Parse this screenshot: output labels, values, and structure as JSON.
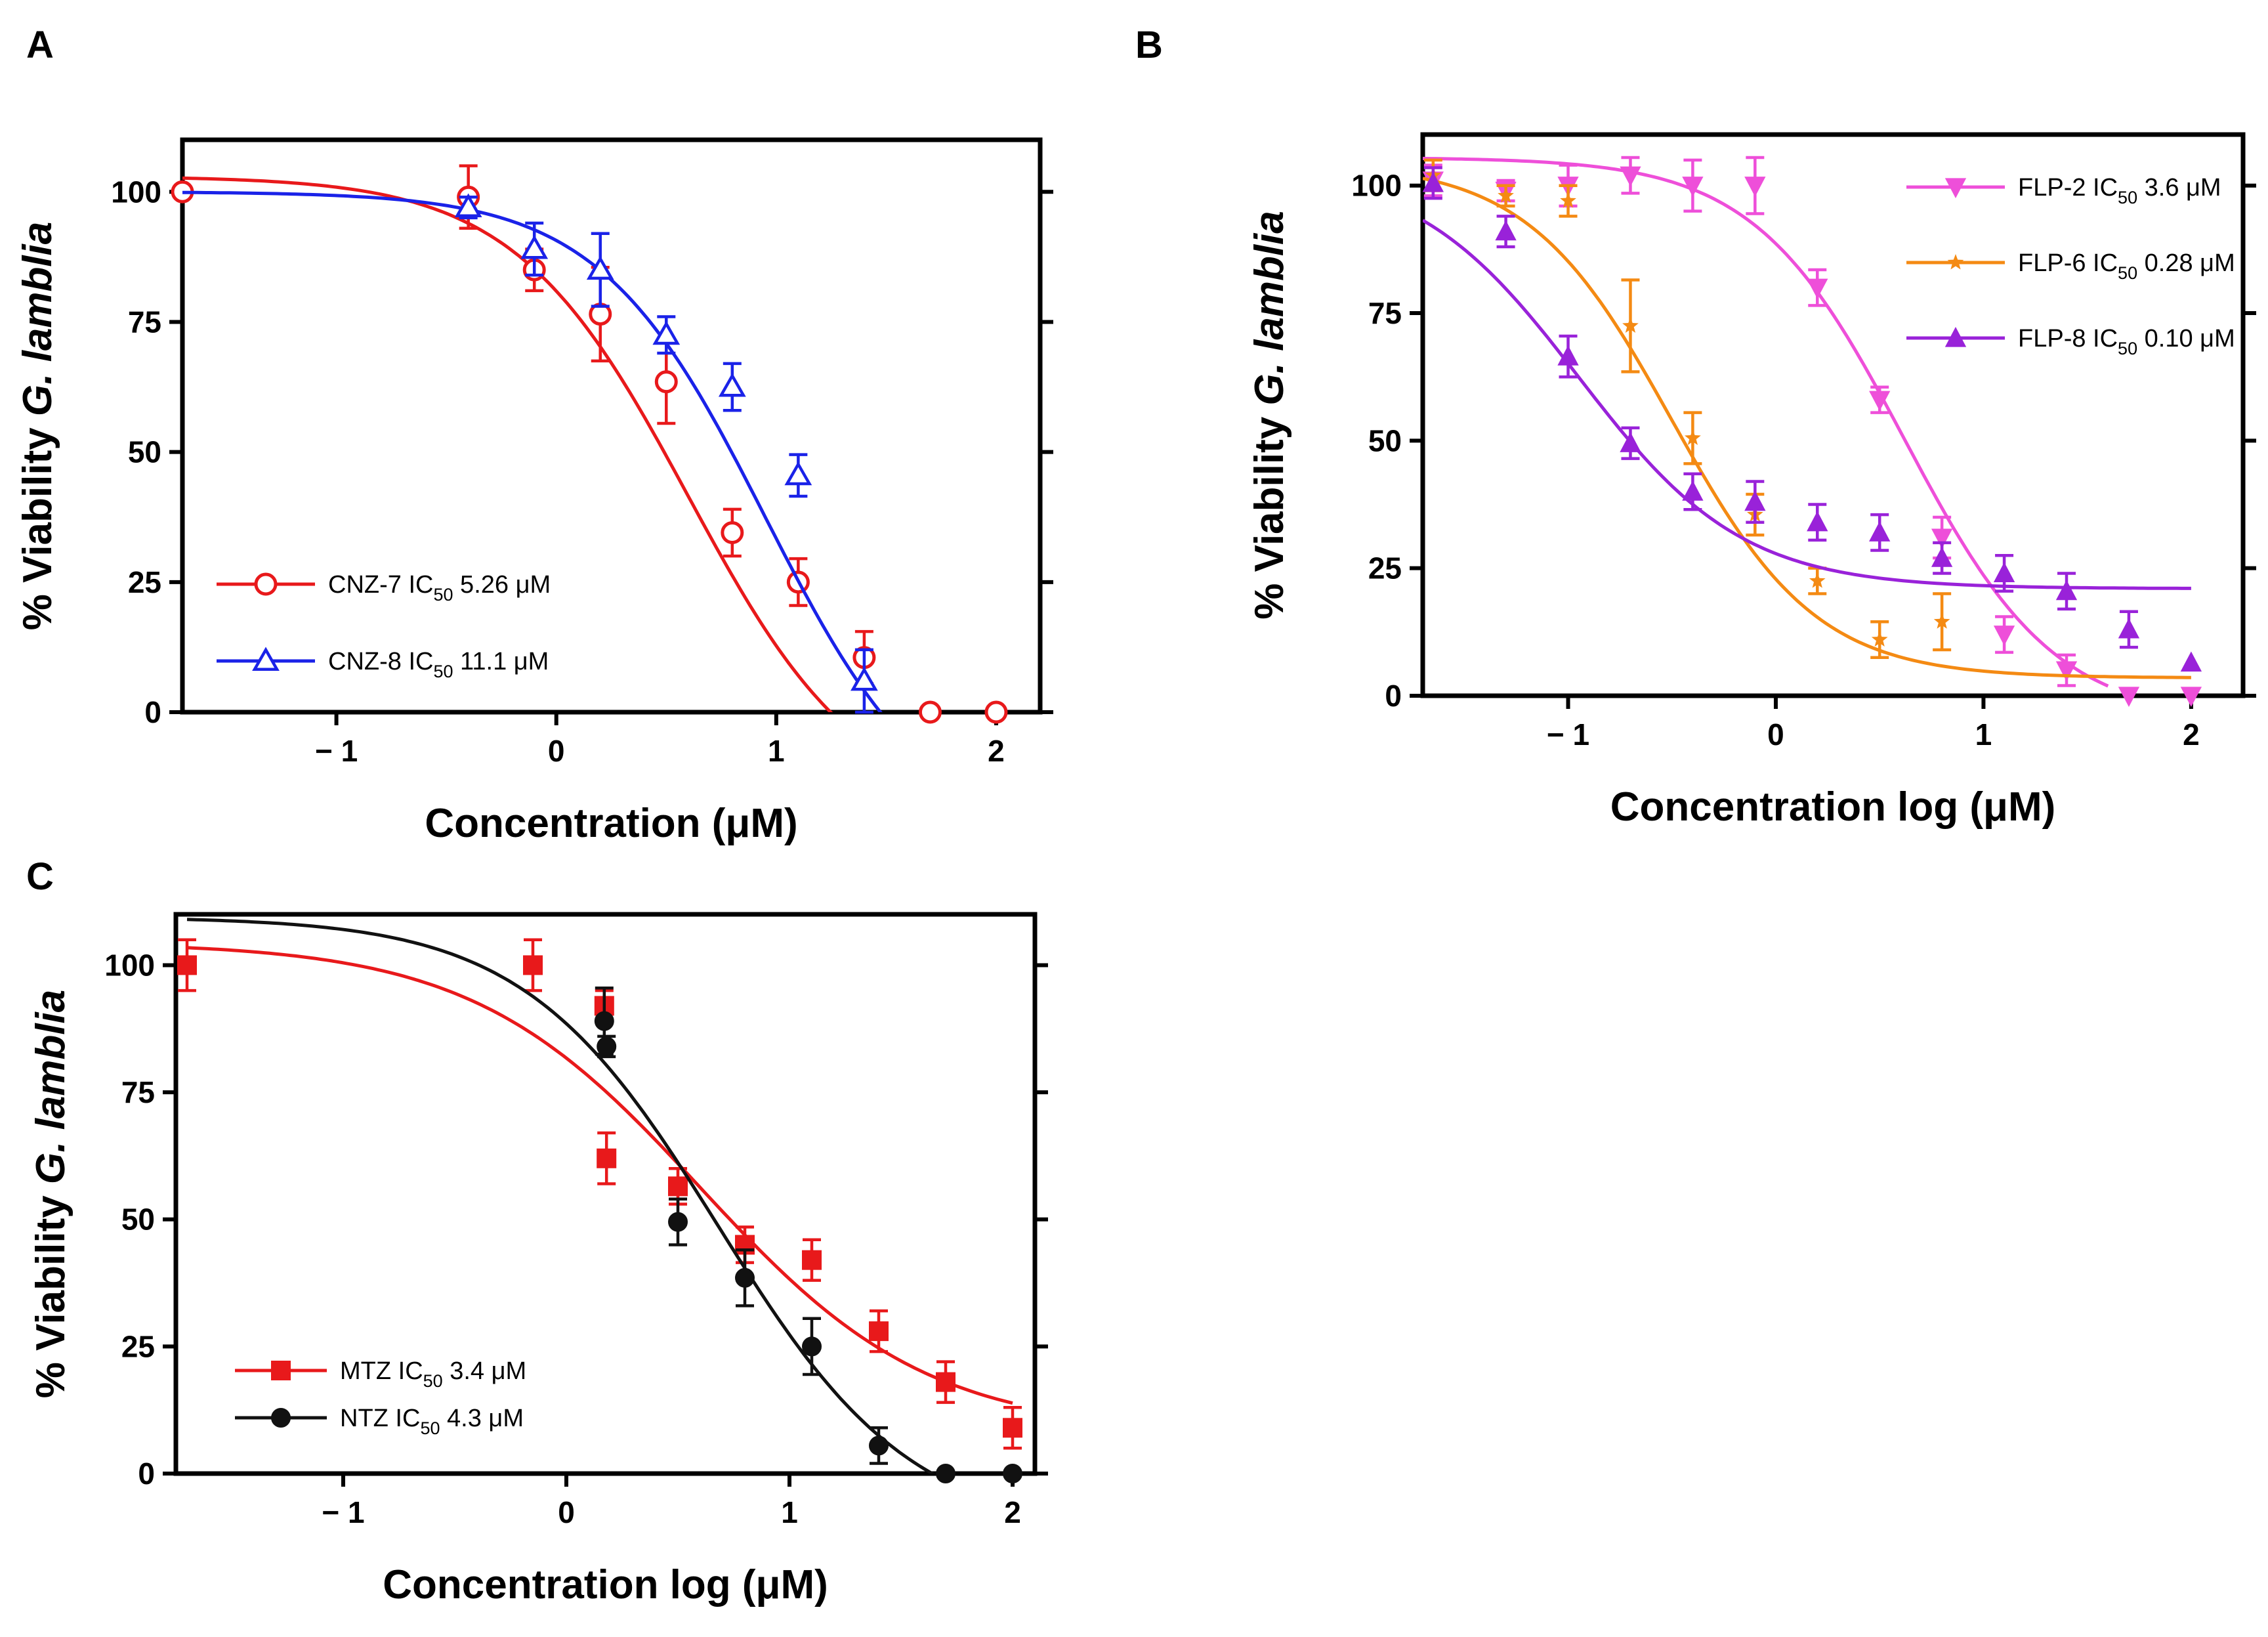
{
  "figure": {
    "panels": [
      {
        "letter": "A"
      },
      {
        "letter": "B"
      },
      {
        "letter": "C"
      }
    ]
  },
  "chart_data": [
    {
      "panel": "A",
      "type": "scatter",
      "fit": "dose-response",
      "title": "",
      "xlabel": "Concentration (μM)",
      "ylabel_prefix": "% Viability ",
      "ylabel_italic": "G. lamblia",
      "xlim": [
        -1.7,
        2.2
      ],
      "ylim": [
        0,
        110
      ],
      "xticks": [
        -1,
        0,
        1,
        2
      ],
      "yticks": [
        0,
        25,
        50,
        75,
        100
      ],
      "xtick_labels": [
        "− 1",
        "0",
        "1",
        "2"
      ],
      "ytick_labels": [
        "0",
        "25",
        "50",
        "75",
        "100"
      ],
      "legend_position": "bottom-left",
      "series": [
        {
          "name": "CNZ-7",
          "legend_prefix": "CNZ-7 IC",
          "legend_sub": "50",
          "legend_suffix": " 5.26 μM",
          "color": "#e8191b",
          "marker": "circle-open",
          "points": [
            {
              "x": -1.7,
              "y": 100,
              "err": 0
            },
            {
              "x": -0.4,
              "y": 99,
              "err": 6
            },
            {
              "x": -0.1,
              "y": 85,
              "err": 4
            },
            {
              "x": 0.2,
              "y": 76.5,
              "err": 9
            },
            {
              "x": 0.5,
              "y": 63.5,
              "err": 8
            },
            {
              "x": 0.8,
              "y": 34.5,
              "err": 4.5
            },
            {
              "x": 1.1,
              "y": 25,
              "err": 4.5
            },
            {
              "x": 1.4,
              "y": 10.5,
              "err": 5
            },
            {
              "x": 1.7,
              "y": 0,
              "err": 0
            },
            {
              "x": 2.0,
              "y": 0,
              "err": 0
            }
          ],
          "curve": {
            "top": 103,
            "bottom": -20,
            "logIC50": 0.6,
            "hill": 1.1,
            "x_from": -1.7,
            "x_to": 1.8
          }
        },
        {
          "name": "CNZ-8",
          "legend_prefix": "CNZ-8 IC",
          "legend_sub": "50",
          "legend_suffix": " 11.1 μM",
          "color": "#1a22e8",
          "marker": "triangle-open",
          "points": [
            {
              "x": -0.4,
              "y": 97,
              "err": 2
            },
            {
              "x": -0.1,
              "y": 89,
              "err": 5
            },
            {
              "x": 0.2,
              "y": 85,
              "err": 7
            },
            {
              "x": 0.5,
              "y": 72.5,
              "err": 3.5
            },
            {
              "x": 0.8,
              "y": 62.5,
              "err": 4.5
            },
            {
              "x": 1.1,
              "y": 45.5,
              "err": 4
            },
            {
              "x": 1.4,
              "y": 6,
              "err": 6
            }
          ],
          "curve": {
            "top": 100,
            "bottom": -25,
            "logIC50": 0.95,
            "hill": 1.15,
            "x_from": -1.7,
            "x_to": 1.75
          }
        }
      ]
    },
    {
      "panel": "B",
      "type": "scatter",
      "fit": "dose-response",
      "title": "",
      "xlabel": "Concentration log (μM)",
      "ylabel_prefix": "% Viability ",
      "ylabel_italic": "G. lamblia",
      "xlim": [
        -1.7,
        2.25
      ],
      "ylim": [
        0,
        110
      ],
      "xticks": [
        -1,
        0,
        1,
        2
      ],
      "yticks": [
        0,
        25,
        50,
        75,
        100
      ],
      "xtick_labels": [
        "− 1",
        "0",
        "1",
        "2"
      ],
      "ytick_labels": [
        "0",
        "25",
        "50",
        "75",
        "100"
      ],
      "legend_position": "top-right",
      "series": [
        {
          "name": "FLP-2",
          "legend_prefix": "FLP-2 IC",
          "legend_sub": "50",
          "legend_suffix": " 3.6 μM",
          "color": "#ee4fd9",
          "marker": "triangle-down-filled",
          "points": [
            {
              "x": -1.65,
              "y": 101,
              "err": 3
            },
            {
              "x": -1.3,
              "y": 99,
              "err": 2
            },
            {
              "x": -1.0,
              "y": 100,
              "err": 4
            },
            {
              "x": -0.7,
              "y": 102,
              "err": 3.5
            },
            {
              "x": -0.4,
              "y": 100,
              "err": 5
            },
            {
              "x": -0.1,
              "y": 100,
              "err": 5.5
            },
            {
              "x": 0.2,
              "y": 80,
              "err": 3.5
            },
            {
              "x": 0.5,
              "y": 58,
              "err": 2.5
            },
            {
              "x": 0.8,
              "y": 31,
              "err": 4
            },
            {
              "x": 1.1,
              "y": 12,
              "err": 3.5
            },
            {
              "x": 1.4,
              "y": 5,
              "err": 3
            },
            {
              "x": 1.7,
              "y": 0,
              "err": 0
            },
            {
              "x": 2.0,
              "y": 0,
              "err": 0
            }
          ],
          "curve": {
            "top": 105.5,
            "bottom": -5,
            "logIC50": 0.62,
            "hill": 1.2,
            "x_from": -1.7,
            "x_to": 1.6
          }
        },
        {
          "name": "FLP-6",
          "legend_prefix": "FLP-6 IC",
          "legend_sub": "50",
          "legend_suffix": " 0.28 μM",
          "color": "#f48a13",
          "marker": "star-filled",
          "points": [
            {
              "x": -1.65,
              "y": 102,
              "err": 3
            },
            {
              "x": -1.3,
              "y": 98,
              "err": 2
            },
            {
              "x": -1.0,
              "y": 97,
              "err": 3
            },
            {
              "x": -0.7,
              "y": 72.5,
              "err": 9
            },
            {
              "x": -0.4,
              "y": 50.5,
              "err": 5
            },
            {
              "x": -0.1,
              "y": 35.5,
              "err": 4
            },
            {
              "x": 0.2,
              "y": 22.5,
              "err": 2.5
            },
            {
              "x": 0.5,
              "y": 11,
              "err": 3.5
            },
            {
              "x": 0.8,
              "y": 14.5,
              "err": 5.5
            }
          ],
          "curve": {
            "top": 104.5,
            "bottom": 3.5,
            "logIC50": -0.5,
            "hill": 1.25,
            "x_from": -1.7,
            "x_to": 2.0
          }
        },
        {
          "name": "FLP-8",
          "legend_prefix": "FLP-8 IC",
          "legend_sub": "50",
          "legend_suffix": " 0.10 μM",
          "color": "#9922d9",
          "marker": "triangle-up-filled",
          "points": [
            {
              "x": -1.65,
              "y": 100.5,
              "err": 3
            },
            {
              "x": -1.3,
              "y": 91,
              "err": 3
            },
            {
              "x": -1.0,
              "y": 66.5,
              "err": 4
            },
            {
              "x": -0.7,
              "y": 49.5,
              "err": 3
            },
            {
              "x": -0.4,
              "y": 40,
              "err": 3.5
            },
            {
              "x": -0.1,
              "y": 38,
              "err": 4
            },
            {
              "x": 0.2,
              "y": 34,
              "err": 3.5
            },
            {
              "x": 0.5,
              "y": 32,
              "err": 3.5
            },
            {
              "x": 0.8,
              "y": 27,
              "err": 3
            },
            {
              "x": 1.1,
              "y": 24,
              "err": 3.5
            },
            {
              "x": 1.4,
              "y": 20.5,
              "err": 3.5
            },
            {
              "x": 1.7,
              "y": 13,
              "err": 3.5
            },
            {
              "x": 2.0,
              "y": 6.5,
              "err": 0
            }
          ],
          "curve": {
            "top": 104,
            "bottom": 21,
            "logIC50": -0.95,
            "hill": 1.1,
            "x_from": -1.7,
            "x_to": 2.0
          }
        }
      ]
    },
    {
      "panel": "C",
      "type": "scatter",
      "fit": "dose-response",
      "title": "",
      "xlabel": "Concentration log (μM)",
      "ylabel_prefix": "% Viability ",
      "ylabel_italic": "G. lamblia",
      "xlim": [
        -1.75,
        2.1
      ],
      "ylim": [
        0,
        110
      ],
      "xticks": [
        -1,
        0,
        1,
        2
      ],
      "yticks": [
        0,
        25,
        50,
        75,
        100
      ],
      "xtick_labels": [
        "− 1",
        "0",
        "1",
        "2"
      ],
      "ytick_labels": [
        "0",
        "25",
        "50",
        "75",
        "100"
      ],
      "legend_position": "bottom-left",
      "series": [
        {
          "name": "MTZ",
          "legend_prefix": "MTZ IC",
          "legend_sub": "50",
          "legend_suffix": " 3.4 μM",
          "color": "#e8191b",
          "marker": "square-filled",
          "points": [
            {
              "x": -1.7,
              "y": 100,
              "err": 5
            },
            {
              "x": -0.15,
              "y": 100,
              "err": 5
            },
            {
              "x": 0.17,
              "y": 92,
              "err": 3
            },
            {
              "x": 0.18,
              "y": 62,
              "err": 5
            },
            {
              "x": 0.5,
              "y": 56.5,
              "err": 3.5
            },
            {
              "x": 0.8,
              "y": 45,
              "err": 3.5
            },
            {
              "x": 1.1,
              "y": 42,
              "err": 4
            },
            {
              "x": 1.4,
              "y": 28,
              "err": 4
            },
            {
              "x": 1.7,
              "y": 18,
              "err": 4
            },
            {
              "x": 2.0,
              "y": 9,
              "err": 4
            }
          ],
          "curve": {
            "top": 104.5,
            "bottom": 8,
            "logIC50": 0.6,
            "hill": 0.85,
            "x_from": -1.7,
            "x_to": 2.0
          }
        },
        {
          "name": "NTZ",
          "legend_prefix": "NTZ IC",
          "legend_sub": "50",
          "legend_suffix": " 4.3 μM",
          "color": "#111111",
          "marker": "circle-filled",
          "points": [
            {
              "x": 0.17,
              "y": 89,
              "err": 6.5
            },
            {
              "x": 0.18,
              "y": 84,
              "err": 2
            },
            {
              "x": 0.5,
              "y": 49.5,
              "err": 4.5
            },
            {
              "x": 0.8,
              "y": 38.5,
              "err": 5.5
            },
            {
              "x": 1.1,
              "y": 25,
              "err": 5.5
            },
            {
              "x": 1.4,
              "y": 5.5,
              "err": 3.5
            },
            {
              "x": 1.7,
              "y": 0,
              "err": 0
            },
            {
              "x": 2.0,
              "y": 0,
              "err": 0
            }
          ],
          "curve": {
            "top": 109.5,
            "bottom": -12,
            "logIC50": 0.68,
            "hill": 1.0,
            "x_from": -1.7,
            "x_to": 1.75
          }
        }
      ]
    }
  ]
}
